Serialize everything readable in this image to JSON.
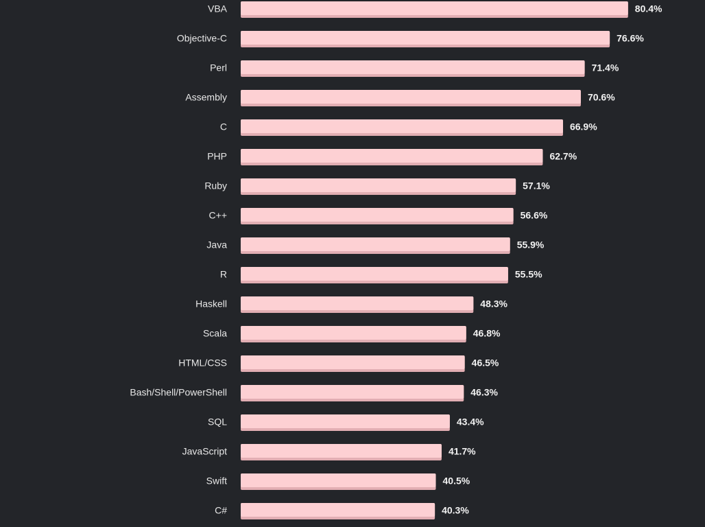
{
  "chart_data": {
    "type": "bar",
    "orientation": "horizontal",
    "categories": [
      "VBA",
      "Objective-C",
      "Perl",
      "Assembly",
      "C",
      "PHP",
      "Ruby",
      "C++",
      "Java",
      "R",
      "Haskell",
      "Scala",
      "HTML/CSS",
      "Bash/Shell/PowerShell",
      "SQL",
      "JavaScript",
      "Swift",
      "C#"
    ],
    "values": [
      80.4,
      76.6,
      71.4,
      70.6,
      66.9,
      62.7,
      57.1,
      56.6,
      55.9,
      55.5,
      48.3,
      46.8,
      46.5,
      46.3,
      43.4,
      41.7,
      40.5,
      40.3
    ],
    "value_labels": [
      "80.4%",
      "76.6%",
      "71.4%",
      "70.6%",
      "66.9%",
      "62.7%",
      "57.1%",
      "56.6%",
      "55.9%",
      "55.5%",
      "48.3%",
      "46.8%",
      "46.5%",
      "46.3%",
      "43.4%",
      "41.7%",
      "40.5%",
      "40.3%"
    ],
    "xlim": [
      0,
      100
    ],
    "grid": false,
    "colors": {
      "background": "#232529",
      "bar": "#fdd0d3",
      "bar_shadow": "#e2aeb3",
      "label_text": "#e7e7e7",
      "value_text": "#f2f2f2"
    }
  }
}
